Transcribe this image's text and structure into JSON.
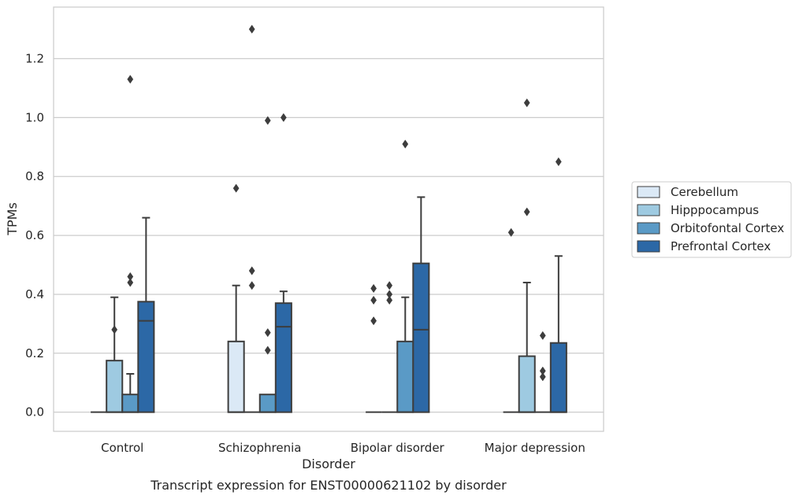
{
  "chart_data": {
    "type": "box",
    "xlabel": "Disorder",
    "ylabel": "TPMs",
    "caption": "Transcript expression for ENST00000621102 by disorder",
    "categories": [
      "Control",
      "Schizophrenia",
      "Bipolar disorder",
      "Major depression"
    ],
    "ylim": [
      -0.065,
      1.375
    ],
    "yticks": [
      "0.0",
      "0.2",
      "0.4",
      "0.6",
      "0.8",
      "1.0",
      "1.2"
    ],
    "grid": true,
    "legend_position": "right",
    "series": [
      {
        "name": "Cerebellum",
        "color": "#dbe9f6",
        "boxes": [
          {
            "q1": 0,
            "median": 0,
            "q3": 0,
            "whisker_low": 0,
            "whisker_high": 0,
            "outliers": []
          },
          {
            "q1": 0,
            "median": 0,
            "q3": 0.24,
            "whisker_low": 0,
            "whisker_high": 0.43,
            "outliers": [
              0.76
            ]
          },
          {
            "q1": 0,
            "median": 0,
            "q3": 0,
            "whisker_low": 0,
            "whisker_high": 0,
            "outliers": [
              0.31,
              0.38,
              0.42
            ]
          },
          {
            "q1": 0,
            "median": 0,
            "q3": 0,
            "whisker_low": 0,
            "whisker_high": 0,
            "outliers": [
              0.61
            ]
          }
        ]
      },
      {
        "name": "Hipppocampus",
        "color": "#9ecae1",
        "boxes": [
          {
            "q1": 0,
            "median": 0,
            "q3": 0.175,
            "whisker_low": 0,
            "whisker_high": 0.39,
            "outliers": [
              0.28
            ]
          },
          {
            "q1": 0,
            "median": 0,
            "q3": 0,
            "whisker_low": 0,
            "whisker_high": 0,
            "outliers": [
              1.3,
              0.48,
              0.43
            ]
          },
          {
            "q1": 0,
            "median": 0,
            "q3": 0,
            "whisker_low": 0,
            "whisker_high": 0,
            "outliers": [
              0.38,
              0.4,
              0.43
            ]
          },
          {
            "q1": 0,
            "median": 0,
            "q3": 0.19,
            "whisker_low": 0,
            "whisker_high": 0.44,
            "outliers": [
              1.05,
              0.68
            ]
          }
        ]
      },
      {
        "name": "Orbitofontal Cortex",
        "color": "#5a9ac6",
        "boxes": [
          {
            "q1": 0,
            "median": 0,
            "q3": 0.06,
            "whisker_low": 0,
            "whisker_high": 0.13,
            "outliers": [
              0.44,
              0.46,
              1.13
            ]
          },
          {
            "q1": 0,
            "median": 0,
            "q3": 0.06,
            "whisker_low": 0,
            "whisker_high": 0.06,
            "outliers": [
              0.21,
              0.27,
              0.99
            ]
          },
          {
            "q1": 0,
            "median": 0,
            "q3": 0.24,
            "whisker_low": 0,
            "whisker_high": 0.39,
            "outliers": [
              0.91
            ]
          },
          {
            "q1": 0,
            "median": 0,
            "q3": 0,
            "whisker_low": 0,
            "whisker_high": 0,
            "outliers": [
              0.12,
              0.14,
              0.26
            ]
          }
        ]
      },
      {
        "name": "Prefrontal Cortex",
        "color": "#2c68a6",
        "boxes": [
          {
            "q1": 0,
            "median": 0.31,
            "q3": 0.375,
            "whisker_low": 0,
            "whisker_high": 0.66,
            "outliers": []
          },
          {
            "q1": 0,
            "median": 0.29,
            "q3": 0.37,
            "whisker_low": 0,
            "whisker_high": 0.41,
            "outliers": [
              1.0
            ]
          },
          {
            "q1": 0,
            "median": 0.28,
            "q3": 0.505,
            "whisker_low": 0,
            "whisker_high": 0.73,
            "outliers": []
          },
          {
            "q1": 0,
            "median": 0,
            "q3": 0.235,
            "whisker_low": 0,
            "whisker_high": 0.53,
            "outliers": [
              0.85
            ]
          }
        ]
      }
    ]
  }
}
